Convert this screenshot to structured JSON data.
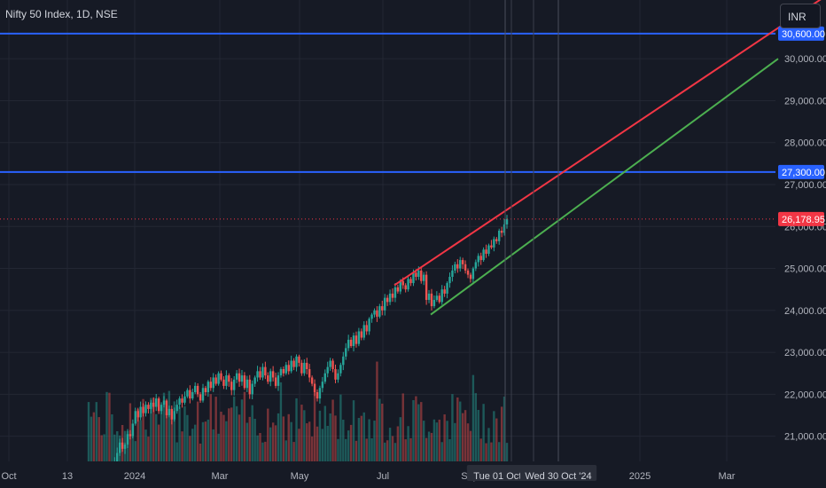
{
  "header": {
    "title": "Nifty 50 Index, 1D, NSE",
    "currency_button": "INR"
  },
  "colors": {
    "background": "#161a25",
    "grid": "#232733",
    "up": "#26a69a",
    "down": "#ef5350",
    "horizontal_line": "#2962ff",
    "upper_trendline": "#f23645",
    "lower_trendline": "#4caf50",
    "price_label": "#f23645",
    "axis_text": "#b2b5be"
  },
  "chart_data": {
    "type": "candlestick",
    "symbol": "Nifty 50 Index",
    "interval": "1D",
    "exchange": "NSE",
    "ylim": [
      20400,
      31400
    ],
    "y_ticks": [
      "21,000.00",
      "22,000.00",
      "23,000.00",
      "24,000.00",
      "25,000.00",
      "26,000.00",
      "27,000.00",
      "28,000.00",
      "29,000.00",
      "30,000.00"
    ],
    "x_ticks": [
      "Oct",
      "13",
      "2024",
      "Mar",
      "May",
      "Jul",
      "Sep",
      "Tue 01 Oct '24",
      "Wed 30 Oct '24",
      "2025",
      "Mar"
    ],
    "last_price": "26,178.95",
    "horizontal_lines": [
      {
        "value": 27300,
        "label": "27,300.00"
      },
      {
        "value": 30600,
        "label": "30,600.00"
      }
    ],
    "trendlines": [
      {
        "name": "upper",
        "from": [
          "2024-06-27",
          24600
        ],
        "to": [
          "2025-04-05",
          31500
        ]
      },
      {
        "name": "lower",
        "from": [
          "2024-08-05",
          23900
        ],
        "to": [
          "2025-04-15",
          30000
        ]
      }
    ],
    "vertical_markers": [
      "Tue 01 Oct '24",
      "Wed 30 Oct '24"
    ],
    "series": [
      {
        "closes": [
          19650,
          19750,
          19600,
          19800,
          19700,
          19650,
          19900,
          20050,
          19850,
          20100,
          20400,
          20600,
          20850,
          20700,
          20800,
          21050,
          21000,
          21300,
          21600,
          21450,
          21700,
          21550,
          21750,
          21650,
          21800,
          21700,
          21900,
          21600,
          21750,
          21850,
          21500,
          21650,
          21400,
          21600,
          21750,
          21900,
          21800,
          21950,
          22100,
          21900,
          22050,
          22200,
          22000,
          21850,
          22150,
          22050,
          22300,
          22150,
          22400,
          22250,
          22500,
          22350,
          22200,
          22450,
          22300,
          22100,
          22350,
          22500,
          22300,
          22450,
          22150,
          22350,
          22000,
          22250,
          22400,
          22550,
          22400,
          22650,
          22450,
          22300,
          22550,
          22400,
          22200,
          22450,
          22600,
          22500,
          22700,
          22550,
          22800,
          22650,
          22900,
          22750,
          22500,
          22750,
          22600,
          22400,
          22250,
          22050,
          21900,
          22150,
          22300,
          22500,
          22650,
          22800,
          22600,
          22350,
          22500,
          22700,
          22900,
          23100,
          23300,
          23150,
          23400,
          23200,
          23500,
          23350,
          23650,
          23500,
          23800,
          23900,
          24000,
          23850,
          24100,
          24000,
          24300,
          24200,
          24400,
          24300,
          24550,
          24450,
          24700,
          24600,
          24500,
          24750,
          24650,
          24900,
          24800,
          24950,
          24700,
          24850,
          24250,
          24400,
          24100,
          24250,
          24350,
          24200,
          24500,
          24400,
          24650,
          24800,
          24950,
          25100,
          25000,
          25200,
          25100,
          24950,
          24850,
          24750,
          25000,
          25150,
          25300,
          25200,
          25450,
          25350,
          25550,
          25500,
          25700,
          25650,
          25900,
          25850,
          26050,
          26178.95
        ]
      }
    ],
    "volume_note": "volume bars shown along bottom of pane"
  }
}
